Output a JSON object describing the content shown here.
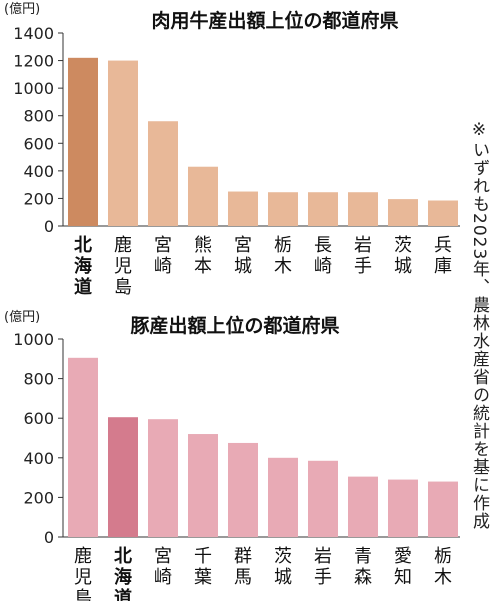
{
  "note": "※いずれも2023年、農林水産省の統計を基に作成",
  "chart_data": [
    {
      "type": "bar",
      "title": "肉用牛産出額上位の都道府県",
      "unit_label": "(億円)",
      "ylim": [
        0,
        1400
      ],
      "yticks": [
        0,
        200,
        400,
        600,
        800,
        1000,
        1200,
        1400
      ],
      "categories": [
        "北海道",
        "鹿児島",
        "宮崎",
        "熊本",
        "宮城",
        "栃木",
        "長崎",
        "岩手",
        "茨城",
        "兵庫"
      ],
      "values": [
        1220,
        1200,
        760,
        430,
        250,
        245,
        245,
        245,
        195,
        185
      ],
      "highlight": "北海道",
      "colors": {
        "bar": "#e8b898",
        "highlight": "#cd8a60"
      }
    },
    {
      "type": "bar",
      "title": "豚産出額上位の都道府県",
      "unit_label": "(億円)",
      "ylim": [
        0,
        1000
      ],
      "yticks": [
        0,
        200,
        400,
        600,
        800,
        1000
      ],
      "categories": [
        "鹿児島",
        "北海道",
        "宮崎",
        "千葉",
        "群馬",
        "茨城",
        "岩手",
        "青森",
        "愛知",
        "栃木"
      ],
      "values": [
        905,
        605,
        595,
        520,
        475,
        400,
        385,
        305,
        290,
        280
      ],
      "highlight": "北海道",
      "colors": {
        "bar": "#e8aab5",
        "highlight": "#d47b8d"
      }
    }
  ]
}
